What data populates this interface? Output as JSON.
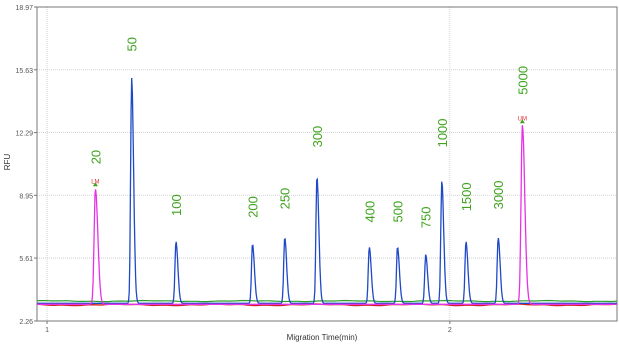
{
  "chart_data": {
    "type": "line",
    "title": "",
    "xlabel": "Migration Time(min)",
    "ylabel": "RFU",
    "x_ticks": [
      "1",
      "2"
    ],
    "x_tick_values": [
      1,
      2
    ],
    "xlim": [
      0.975,
      2.415
    ],
    "y_ticks": [
      "2.26",
      "5.61",
      "8.95",
      "12.29",
      "15.63",
      "18.97"
    ],
    "y_tick_values": [
      2.26,
      5.61,
      8.95,
      12.29,
      15.63,
      18.97
    ],
    "ylim": [
      2.26,
      18.97
    ],
    "grid": true,
    "colors": {
      "ladder": "#1f49c6",
      "marker": "#e632e6",
      "baseline_green": "#2aa02a",
      "baseline_red": "#d42020",
      "peak_label": "#3fa31f",
      "marker_label": "#e03030",
      "grid": "#c8c8c8",
      "axis": "#777777",
      "tick_text": "#555555"
    },
    "series": [
      {
        "id": "ladder",
        "peaks": [
          {
            "x": 1.21,
            "y": 15.2
          },
          {
            "x": 1.32,
            "y": 6.5
          },
          {
            "x": 1.51,
            "y": 6.35
          },
          {
            "x": 1.59,
            "y": 6.7
          },
          {
            "x": 1.67,
            "y": 9.95
          },
          {
            "x": 1.8,
            "y": 6.2
          },
          {
            "x": 1.87,
            "y": 6.2
          },
          {
            "x": 1.94,
            "y": 5.8
          },
          {
            "x": 1.98,
            "y": 9.7
          },
          {
            "x": 2.04,
            "y": 6.5
          },
          {
            "x": 2.12,
            "y": 6.7
          }
        ]
      },
      {
        "id": "marker",
        "peaks": [
          {
            "x": 1.12,
            "y": 9.3
          },
          {
            "x": 2.18,
            "y": 12.7
          }
        ]
      }
    ],
    "annotations": [
      {
        "text": "20",
        "x": 1.12,
        "y": 10.6,
        "color": "peak"
      },
      {
        "text": "LM",
        "x": 1.12,
        "y": 9.75,
        "color": "marker"
      },
      {
        "text": "50",
        "x": 1.21,
        "y": 16.6,
        "color": "peak"
      },
      {
        "text": "100",
        "x": 1.32,
        "y": 7.85,
        "color": "peak"
      },
      {
        "text": "200",
        "x": 1.51,
        "y": 7.75,
        "color": "peak"
      },
      {
        "text": "250",
        "x": 1.59,
        "y": 8.2,
        "color": "peak"
      },
      {
        "text": "300",
        "x": 1.67,
        "y": 11.5,
        "color": "peak"
      },
      {
        "text": "400",
        "x": 1.8,
        "y": 7.5,
        "color": "peak"
      },
      {
        "text": "500",
        "x": 1.87,
        "y": 7.5,
        "color": "peak"
      },
      {
        "text": "750",
        "x": 1.94,
        "y": 7.2,
        "color": "peak"
      },
      {
        "text": "1000",
        "x": 1.98,
        "y": 11.5,
        "color": "peak"
      },
      {
        "text": "1500",
        "x": 2.04,
        "y": 8.1,
        "color": "peak"
      },
      {
        "text": "3000",
        "x": 2.12,
        "y": 8.2,
        "color": "peak"
      },
      {
        "text": "5000",
        "x": 2.18,
        "y": 14.3,
        "color": "peak"
      },
      {
        "text": "UM",
        "x": 2.18,
        "y": 13.1,
        "color": "marker"
      }
    ]
  }
}
